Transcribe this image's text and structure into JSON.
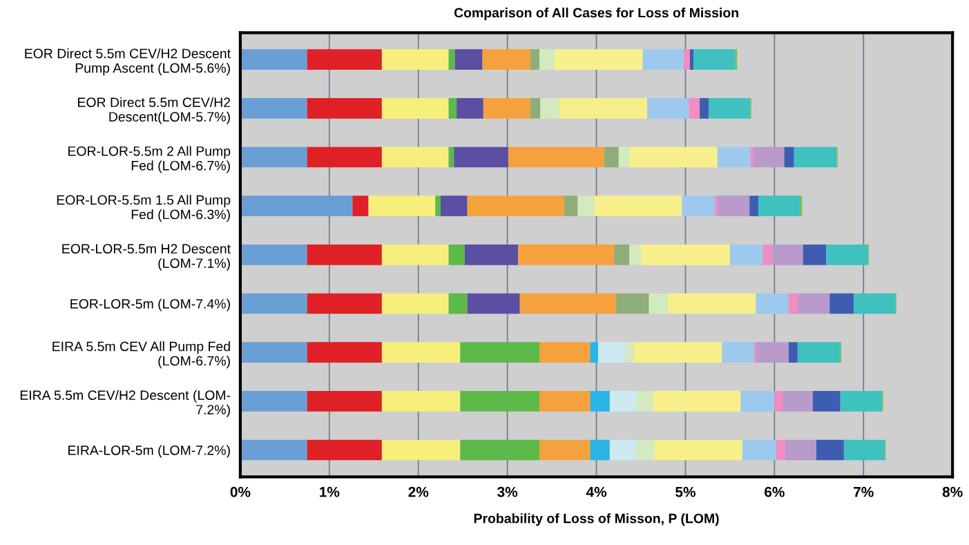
{
  "chart_data": {
    "type": "bar",
    "orientation": "horizontal",
    "stacked": true,
    "title": "Comparison of All Cases for Loss of Mission",
    "xlabel": "Probability of Loss of Misson, P (LOM)",
    "categories": [
      "EOR Direct 5.5m CEV/H2 Descent\nPump Ascent (LOM-5.6%)",
      "EOR Direct 5.5m CEV/H2\nDescent(LOM-5.7%)",
      "EOR-LOR-5.5m 2 All Pump\nFed (LOM-6.7%)",
      "EOR-LOR-5.5m 1.5 All Pump\nFed (LOM-6.3%)",
      "EOR-LOR-5.5m H2 Descent\n(LOM-7.1%)",
      "EOR-LOR-5m (LOM-7.4%)",
      "EIRA 5.5m CEV All Pump Fed\n(LOM-6.7%)",
      "EIRA 5.5m CEV/H2 Descent (LOM-\n7.2%)",
      "EIRA-LOR-5m (LOM-7.2%)"
    ],
    "series": [
      {
        "color": "#6a9fd6",
        "values": [
          0.75,
          0.75,
          0.75,
          1.26,
          0.75,
          0.75,
          0.75,
          0.75,
          0.75
        ]
      },
      {
        "color": "#e02027",
        "values": [
          0.84,
          0.84,
          0.84,
          0.18,
          0.84,
          0.84,
          0.84,
          0.84,
          0.84
        ]
      },
      {
        "color": "#f7ef7c",
        "values": [
          0.75,
          0.75,
          0.75,
          0.75,
          0.75,
          0.75,
          0.88,
          0.88,
          0.88
        ]
      },
      {
        "color": "#5cb94a",
        "values": [
          0.07,
          0.09,
          0.06,
          0.06,
          0.18,
          0.21,
          0.89,
          0.89,
          0.89
        ]
      },
      {
        "color": "#5b4fa3",
        "values": [
          0.31,
          0.3,
          0.61,
          0.3,
          0.6,
          0.59,
          null,
          null,
          null
        ]
      },
      {
        "color": "#f5a23e",
        "values": [
          0.54,
          0.53,
          1.08,
          1.09,
          1.08,
          1.08,
          0.57,
          0.57,
          0.57
        ]
      },
      {
        "color": "#8fad78",
        "values": [
          0.1,
          0.11,
          0.16,
          0.15,
          0.17,
          0.37,
          null,
          null,
          null
        ]
      },
      {
        "color": "#29b4e6",
        "values": [
          null,
          null,
          null,
          null,
          null,
          null,
          0.09,
          0.22,
          0.22
        ]
      },
      {
        "color": "#cdeaf3",
        "values": [
          null,
          null,
          null,
          null,
          null,
          null,
          0.3,
          0.3,
          0.29
        ]
      },
      {
        "color": "#d3e9bf",
        "values": [
          0.17,
          0.21,
          0.12,
          0.19,
          0.13,
          0.21,
          0.1,
          0.19,
          0.21
        ]
      },
      {
        "color": "#f7f08a",
        "values": [
          0.99,
          0.99,
          0.99,
          0.98,
          1.0,
          0.99,
          0.99,
          0.98,
          0.99
        ]
      },
      {
        "color": "#9dc9ee",
        "values": [
          0.46,
          0.47,
          0.37,
          0.37,
          0.37,
          0.37,
          0.36,
          0.38,
          0.38
        ]
      },
      {
        "color": "#f28dc1",
        "values": [
          0.07,
          0.12,
          0.03,
          0.03,
          0.1,
          0.1,
          0.02,
          0.09,
          0.1
        ]
      },
      {
        "color": "#b89acb",
        "values": [
          null,
          null,
          0.35,
          0.36,
          0.35,
          0.36,
          0.37,
          0.34,
          0.35
        ]
      },
      {
        "color": "#3e5db2",
        "values": [
          0.04,
          0.1,
          0.11,
          0.1,
          0.26,
          0.27,
          0.1,
          0.31,
          0.31
        ]
      },
      {
        "color": "#3fc1c0",
        "values": [
          0.47,
          0.47,
          0.48,
          0.47,
          0.47,
          0.47,
          0.48,
          0.47,
          0.46
        ]
      },
      {
        "color": "#7cc242",
        "values": [
          0.02,
          0.01,
          0.01,
          0.02,
          0.01,
          0.01,
          0.01,
          0.01,
          0.01
        ]
      }
    ],
    "xlim": [
      0,
      8
    ],
    "xticks": [
      {
        "value": 0,
        "label": "0%"
      },
      {
        "value": 1,
        "label": "1%"
      },
      {
        "value": 2,
        "label": "2%"
      },
      {
        "value": 3,
        "label": "3%"
      },
      {
        "value": 4,
        "label": "4%"
      },
      {
        "value": 5,
        "label": "5%"
      },
      {
        "value": 6,
        "label": "6%"
      },
      {
        "value": 7,
        "label": "7%"
      },
      {
        "value": 8,
        "label": "8%"
      }
    ],
    "grid": "x"
  }
}
